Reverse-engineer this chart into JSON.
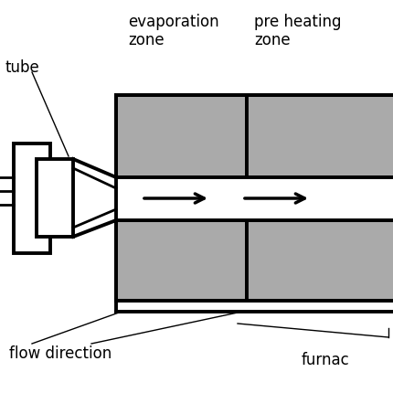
{
  "bg_color": "#ffffff",
  "gray_color": "#aaaaaa",
  "black": "#000000",
  "lw_thick": 2.8,
  "lw_med": 2.0,
  "lw_thin": 1.0,
  "text_fontsize": 12,
  "figsize": [
    4.31,
    4.31
  ],
  "dpi": 100,
  "labels": {
    "tube": "tube",
    "evaporation_zone_l1": "evaporation",
    "evaporation_zone_l2": "zone",
    "pre_heating_zone_l1": "pre heating",
    "pre_heating_zone_l2": "zone",
    "flow_direction": "flow direction",
    "furnace": "furnac"
  }
}
